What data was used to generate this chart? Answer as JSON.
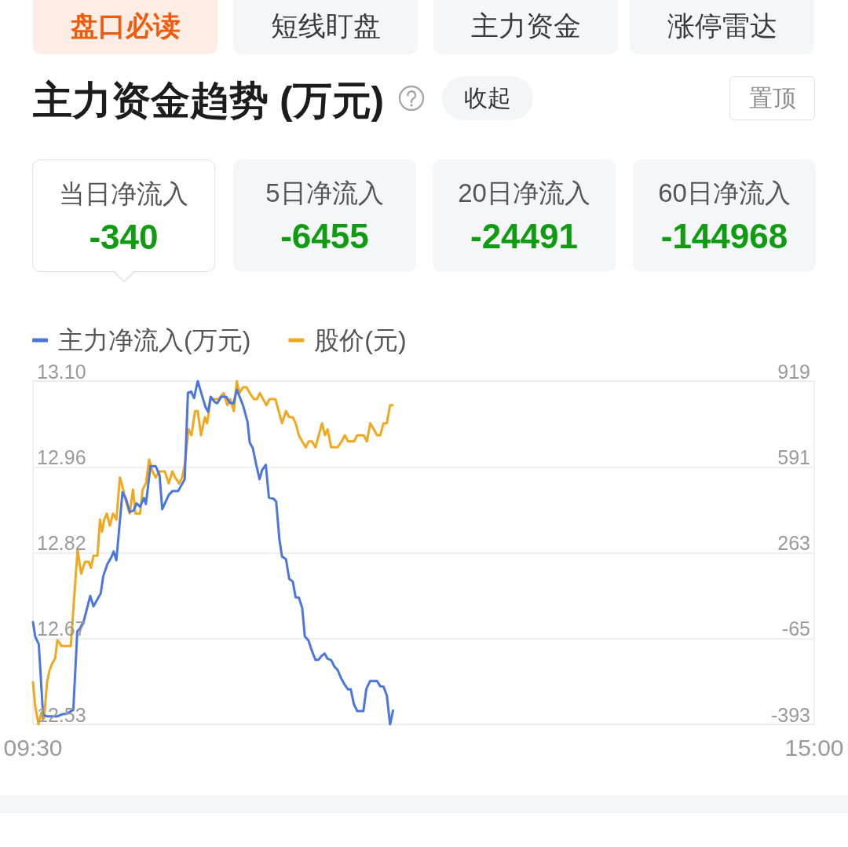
{
  "chart_data": {
    "type": "line",
    "title": "主力资金趋势 (万元)",
    "annotations": [
      "盘口必读",
      "短线盯盘",
      "主力资金",
      "涨停雷达",
      "收起",
      "置顶",
      "当日净流入",
      "-340",
      "5日净流入",
      "-6455",
      "20日净流入",
      "-24491",
      "60日净流入",
      "-144968"
    ],
    "series": [
      {
        "name": "主力净流入(万元)",
        "color": "#4a76e0",
        "axis": "y2",
        "x": [
          9.5,
          9.516,
          9.541,
          9.571,
          9.599,
          9.672,
          9.702,
          9.738,
          9.784,
          9.812,
          9.83,
          9.858,
          9.903,
          9.926,
          9.977,
          9.995,
          10.023,
          10.05,
          10.068,
          10.087,
          10.13,
          10.155,
          10.181,
          10.208,
          10.229,
          10.254,
          10.281,
          10.295,
          10.327,
          10.364,
          10.391,
          10.41,
          10.456,
          10.483,
          10.522,
          10.568,
          10.591,
          10.614,
          10.634,
          10.66,
          10.687,
          10.715,
          10.733,
          10.751,
          10.779,
          10.797,
          10.825,
          10.861,
          10.886,
          10.912,
          10.935,
          10.962,
          10.98,
          11.01,
          11.026,
          11.047,
          11.074,
          11.095,
          11.113,
          11.139,
          11.161,
          11.194,
          11.212,
          11.235,
          11.253,
          11.281,
          11.304,
          11.329,
          11.349,
          11.372,
          11.395,
          11.414,
          11.439,
          11.464,
          11.489,
          11.512,
          11.53,
          11.553,
          11.574,
          11.599,
          11.622,
          11.645,
          11.668,
          11.695,
          11.718,
          11.737,
          11.76,
          11.783,
          11.826,
          11.847,
          11.874,
          11.922,
          11.945,
          11.968,
          11.991,
          12.014,
          12.035
        ],
        "values": [
          -2,
          -57,
          -87,
          -357,
          -362,
          -362,
          -355,
          -352,
          -337,
          -37,
          -27,
          3,
          98,
          58,
          108,
          174,
          219,
          244,
          268,
          234,
          494,
          469,
          419,
          424,
          452,
          439,
          472,
          449,
          594,
          594,
          559,
          429,
          484,
          499,
          499,
          544,
          874,
          879,
          854,
          919,
          869,
          819,
          802,
          859,
          839,
          834,
          859,
          859,
          836,
          834,
          886,
          849,
          824,
          764,
          684,
          664,
          594,
          544,
          579,
          599,
          474,
          469,
          459,
          313,
          249,
          238,
          163,
          153,
          93,
          91,
          53,
          -57,
          -72,
          -112,
          -147,
          -145,
          -132,
          -122,
          -142,
          -147,
          -172,
          -185,
          -215,
          -242,
          -259,
          -259,
          -317,
          -342,
          -342,
          -257,
          -227,
          -227,
          -247,
          -249,
          -282,
          -393,
          -340
        ]
      },
      {
        "name": "股价(元)",
        "color": "#f2a81d",
        "x": [
          9.5,
          9.516,
          9.539,
          9.56,
          9.578,
          9.599,
          9.617,
          9.633,
          9.656,
          9.672,
          9.702,
          9.766,
          9.784,
          9.814,
          9.839,
          9.867,
          9.892,
          9.908,
          9.926,
          9.954,
          9.972,
          9.986,
          10.002,
          10.02,
          10.041,
          10.064,
          10.087,
          10.112,
          10.135,
          10.155,
          10.181,
          10.204,
          10.222,
          10.254,
          10.272,
          10.295,
          10.318,
          10.341,
          10.364,
          10.389,
          10.428,
          10.456,
          10.481,
          10.501,
          10.529,
          10.55,
          10.568,
          10.595,
          10.616,
          10.641,
          10.66,
          10.683,
          10.71,
          10.726,
          10.751,
          10.779,
          10.806,
          10.843,
          10.868,
          10.889,
          10.914,
          10.935,
          10.953,
          10.98,
          11.003,
          11.026,
          11.056,
          11.077,
          11.097,
          11.12,
          11.143,
          11.166,
          11.207,
          11.23,
          11.253,
          11.281,
          11.304,
          11.329,
          11.349,
          11.372,
          11.395,
          11.42,
          11.441,
          11.464,
          11.489,
          11.512,
          11.535,
          11.556,
          11.574,
          11.599,
          11.645,
          11.673,
          11.695,
          11.718,
          11.76,
          11.783,
          11.828,
          11.851,
          11.874,
          11.899,
          11.922,
          11.945,
          11.968,
          11.991,
          12.014,
          12.032
        ],
        "values": [
          12.6,
          12.56,
          12.53,
          12.55,
          12.54,
          12.6,
          12.62,
          12.63,
          12.64,
          12.67,
          12.66,
          12.66,
          12.72,
          12.82,
          12.78,
          12.8,
          12.8,
          12.79,
          12.81,
          12.81,
          12.87,
          12.85,
          12.87,
          12.88,
          12.86,
          12.88,
          12.87,
          12.94,
          12.92,
          12.9,
          12.88,
          12.92,
          12.88,
          12.88,
          12.92,
          12.93,
          12.97,
          12.95,
          12.94,
          12.95,
          12.95,
          12.93,
          12.95,
          12.94,
          12.93,
          12.94,
          12.96,
          13.02,
          13.01,
          13.05,
          13.05,
          13.01,
          13.04,
          13.03,
          13.07,
          13.07,
          13.07,
          13.08,
          13.06,
          13.07,
          13.05,
          13.1,
          13.08,
          13.09,
          13.09,
          13.08,
          13.07,
          13.07,
          13.08,
          13.07,
          13.06,
          13.07,
          13.07,
          13.05,
          13.03,
          13.05,
          13.04,
          13.04,
          13.03,
          13.01,
          13,
          12.99,
          13,
          13,
          12.99,
          13.01,
          13.03,
          13.01,
          13.02,
          12.99,
          12.99,
          13,
          13.01,
          13,
          13,
          13.01,
          13.01,
          13,
          13.03,
          13.02,
          13.01,
          13.01,
          13.03,
          13.03,
          13.06,
          13.06
        ]
      }
    ],
    "xlim": [
      9.5,
      15
    ],
    "xticks": [
      {
        "value": 9.5,
        "label": "09:30"
      },
      {
        "value": 15,
        "label": "15:00"
      }
    ],
    "ylim": [
      12.53,
      13.1
    ],
    "yticks": [
      {
        "value": 12.53,
        "label": "12.53"
      },
      {
        "value": 12.6725,
        "label": "12.67"
      },
      {
        "value": 12.815,
        "label": "12.82"
      },
      {
        "value": 12.9575,
        "label": "12.96"
      },
      {
        "value": 13.1,
        "label": "13.10"
      }
    ],
    "y2lim": [
      -393,
      919
    ],
    "y2ticks": [
      -393,
      -65,
      263,
      591,
      919
    ],
    "grid": "y",
    "legend": "top left",
    "marker": "none",
    "line_style": "solid"
  }
}
